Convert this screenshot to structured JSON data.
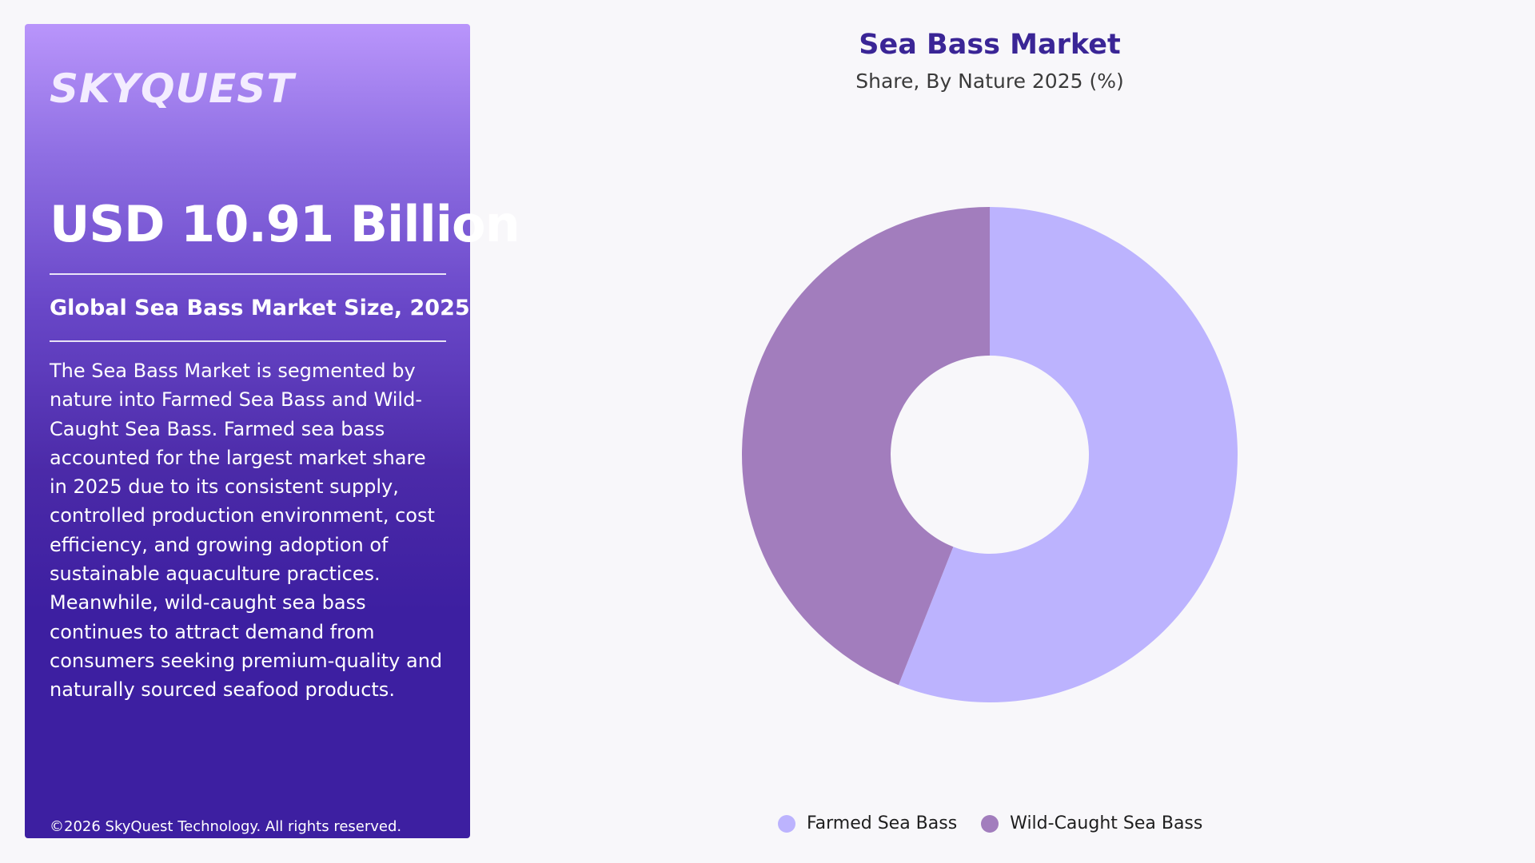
{
  "panel": {
    "logo": "SKYQUEST",
    "market_size": "USD 10.91 Billion",
    "size_label": "Global Sea Bass Market Size, 2025",
    "description": "The Sea Bass Market is segmented by nature into Farmed Sea Bass and Wild-Caught Sea Bass. Farmed sea bass accounted for the largest market share in 2025 due to its consistent supply, controlled production environment, cost efficiency, and growing adoption of sustainable aquaculture practices. Meanwhile, wild-caught sea bass continues to attract demand from consumers seeking premium-quality and naturally sourced seafood products.",
    "copyright": "©2026 SkyQuest Technology. All rights reserved."
  },
  "chart_data": {
    "type": "pie",
    "title": "Sea Bass Market",
    "subtitle": "Share, By Nature 2025 (%)",
    "categories": [
      "Farmed Sea Bass",
      "Wild-Caught Sea Bass"
    ],
    "values": [
      56,
      44
    ],
    "colors": [
      "#bcb3fe",
      "#a27dbd"
    ],
    "legend_position": "bottom"
  }
}
